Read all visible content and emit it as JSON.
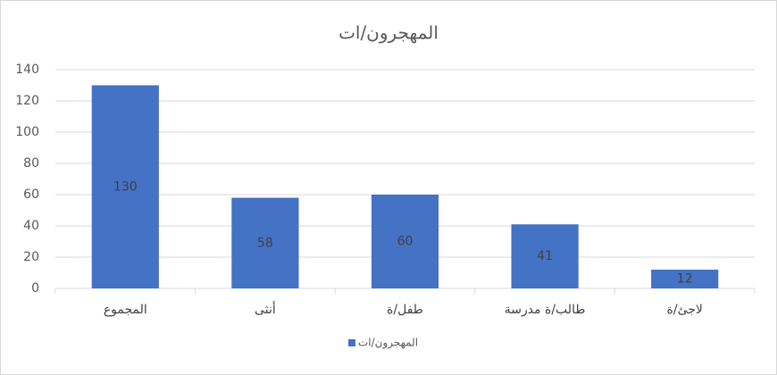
{
  "chart_data": {
    "type": "bar",
    "title": "المهجرون/ات",
    "categories": [
      "المجموع",
      "أنثى",
      "طفل/ة",
      "طالب/ة مدرسة",
      "لاجئ/ة"
    ],
    "series": [
      {
        "name": "المهجرون/ات",
        "color": "#4472c4",
        "values": [
          130,
          58,
          60,
          41,
          12
        ]
      }
    ],
    "ylim": [
      0,
      140
    ],
    "yticks": [
      0,
      20,
      40,
      60,
      80,
      100,
      120,
      140
    ],
    "grid": true,
    "legend": "bottom",
    "data_labels": true
  }
}
